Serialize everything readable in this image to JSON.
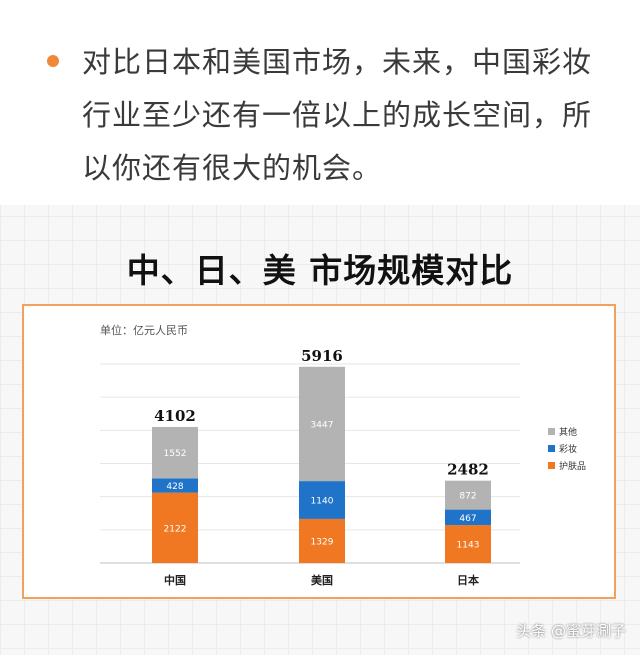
{
  "bullet": {
    "text": "对比日本和美国市场，未来，中国彩妆行业至少还有一倍以上的成长空间，所以你还有很大的机会。"
  },
  "chart_title": "中、日、美 市场规模对比",
  "watermark": "头条 @蜜芽涮子",
  "chart_data": {
    "type": "bar",
    "stacked": true,
    "title": "",
    "unit_label": "单位：亿元人民币",
    "categories": [
      "中国",
      "美国",
      "日本"
    ],
    "totals": [
      4102,
      5916,
      2482
    ],
    "series": [
      {
        "name": "护肤品",
        "values": [
          2122,
          1329,
          1143
        ],
        "color": "#f07822"
      },
      {
        "name": "彩妆",
        "values": [
          428,
          1140,
          467
        ],
        "color": "#1f73c8"
      },
      {
        "name": "其他",
        "values": [
          1552,
          3447,
          872
        ],
        "color": "#b3b3b3"
      }
    ],
    "legend_order": [
      "其他",
      "彩妆",
      "护肤品"
    ],
    "ylim": [
      0,
      6000
    ],
    "grid": true,
    "legend_position": "right"
  },
  "colors": {
    "accent": "#f0883a",
    "frame_border": "#f2a15c"
  }
}
